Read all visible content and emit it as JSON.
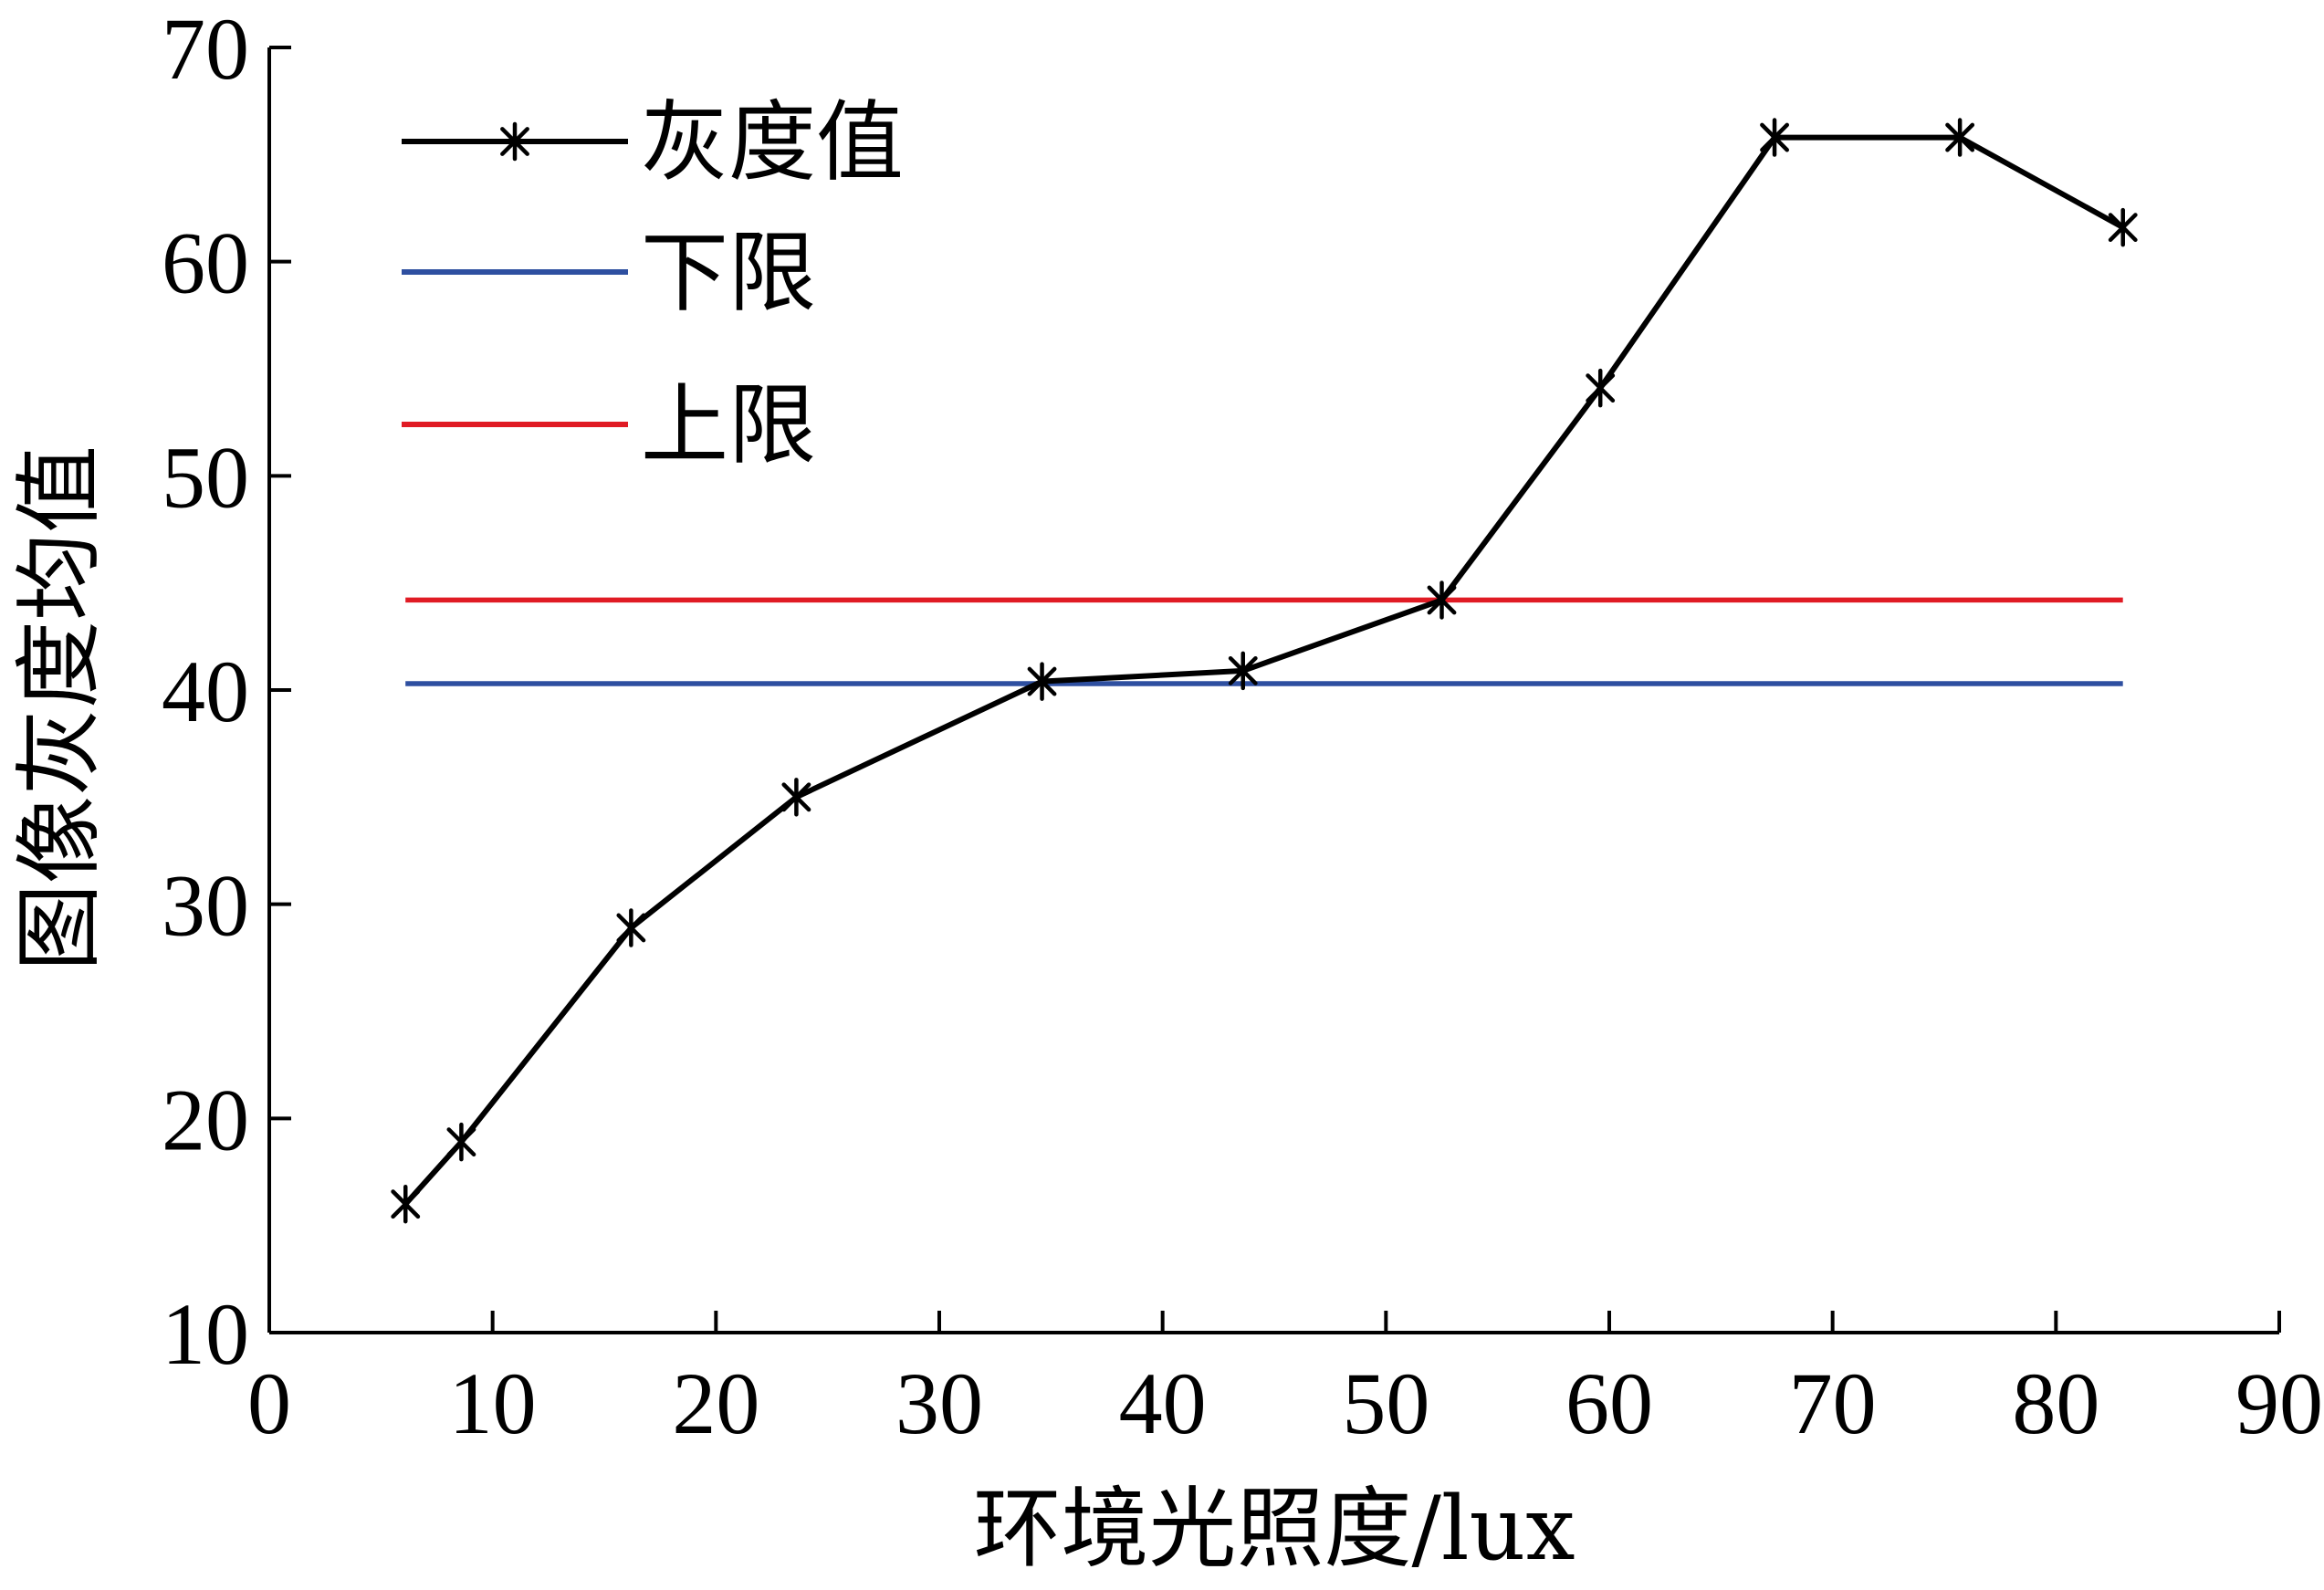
{
  "chart_data": {
    "type": "line",
    "title": "",
    "xlabel": "环境光照度/lux",
    "ylabel": "图像灰度均值",
    "xlim": [
      0,
      90
    ],
    "ylim": [
      10,
      70
    ],
    "xticks": [
      "0",
      "10",
      "20",
      "30",
      "40",
      "50",
      "60",
      "70",
      "80",
      "90"
    ],
    "yticks": [
      "10",
      "20",
      "30",
      "40",
      "50",
      "60",
      "70"
    ],
    "grid": false,
    "legend_position": "top-left",
    "series": [
      {
        "name": "灰度值",
        "color": "#000000",
        "marker": "asterisk",
        "x": [
          6.1,
          8.6,
          16.2,
          23.6,
          34.6,
          43.6,
          52.5,
          59.6,
          67.4,
          75.7,
          83.0
        ],
        "y": [
          16.0,
          18.9,
          28.9,
          35.0,
          40.4,
          40.9,
          44.2,
          54.1,
          65.8,
          65.8,
          61.6
        ]
      },
      {
        "name": "下限",
        "color": "#2e4fa0",
        "marker": "none",
        "x": [
          6.1,
          83.0
        ],
        "y": [
          40.3,
          40.3
        ]
      },
      {
        "name": "上限",
        "color": "#e01b24",
        "marker": "none",
        "x": [
          6.1,
          83.0
        ],
        "y": [
          44.2,
          44.2
        ]
      }
    ]
  }
}
